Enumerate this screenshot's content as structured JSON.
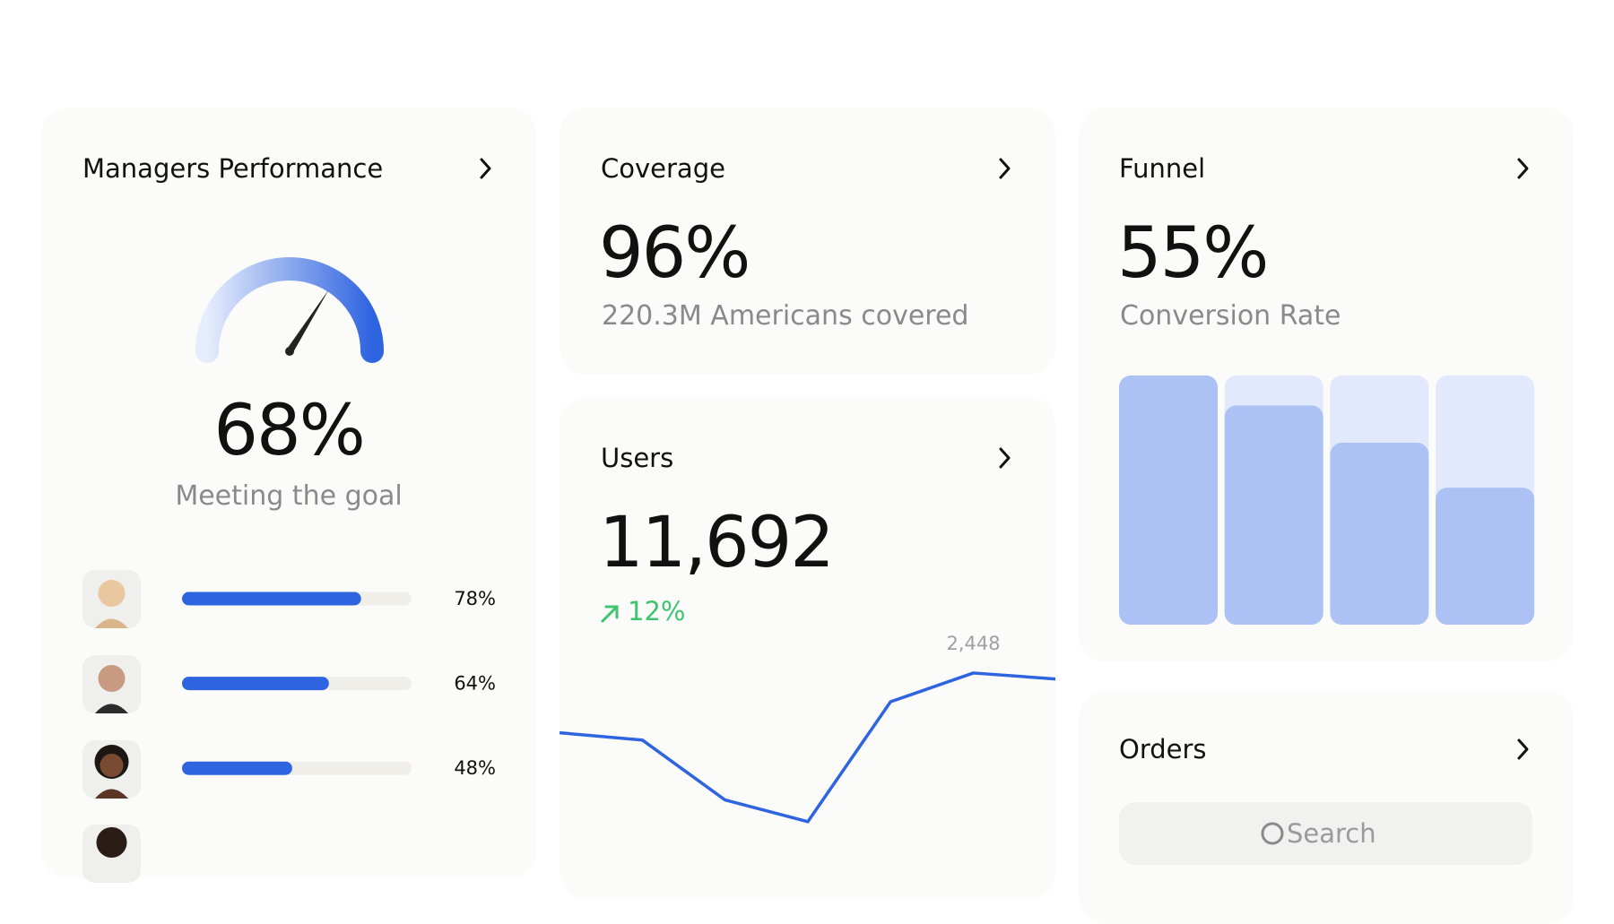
{
  "managers": {
    "title": "Managers Performance",
    "value": "68%",
    "gauge": 68,
    "caption": "Meeting the goal",
    "people": [
      {
        "value": 78,
        "label": "78%"
      },
      {
        "value": 64,
        "label": "64%"
      },
      {
        "value": 48,
        "label": "48%"
      }
    ]
  },
  "coverage": {
    "title": "Coverage",
    "value": "96%",
    "caption": "220.3M Americans covered"
  },
  "users": {
    "title": "Users",
    "value": "11,692",
    "change": "12%",
    "chart": {
      "type": "line",
      "values": [
        1870,
        1800,
        1220,
        1010,
        2170,
        2448,
        2390
      ],
      "ylim": [
        1000,
        2600
      ],
      "color": "#2f64e0",
      "peak_label": "2,448"
    }
  },
  "funnel": {
    "title": "Funnel",
    "value": "55%",
    "caption": "Conversion Rate",
    "chart": {
      "type": "bar",
      "values": [
        100,
        88,
        73,
        55
      ],
      "ylim": [
        0,
        100
      ],
      "color": "#adc2f4",
      "track_color": "#e3e9fc"
    }
  },
  "orders": {
    "title": "Orders",
    "search": "Search"
  }
}
